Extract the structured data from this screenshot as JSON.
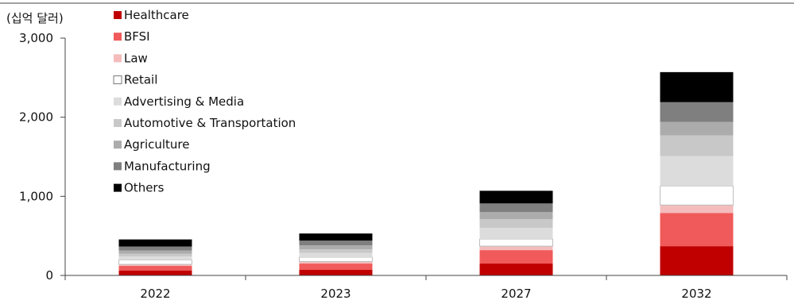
{
  "chart_data": {
    "type": "bar",
    "stacked": true,
    "unit_label": "(십억 달러)",
    "categories": [
      "2022",
      "2023",
      "2027",
      "2032"
    ],
    "ylim": [
      0,
      3000
    ],
    "yticks": [
      0,
      1000,
      2000,
      3000
    ],
    "ytick_labels": [
      "0",
      "1,000",
      "2,000",
      "3,000"
    ],
    "grid": false,
    "legend_position": "top-left",
    "series": [
      {
        "name": "Healthcare",
        "color": "#c00000",
        "values": [
          60,
          70,
          150,
          370
        ]
      },
      {
        "name": "BFSI",
        "color": "#f05a5a",
        "values": [
          60,
          80,
          170,
          420
        ]
      },
      {
        "name": "Law",
        "color": "#f4bcbc",
        "values": [
          20,
          25,
          50,
          100
        ]
      },
      {
        "name": "Retail",
        "color": "#ffffff",
        "values": [
          55,
          55,
          90,
          240
        ]
      },
      {
        "name": "Advertising & Media",
        "color": "#dcdcdc",
        "values": [
          45,
          55,
          140,
          380
        ]
      },
      {
        "name": "Automotive & Transportation",
        "color": "#c8c8c8",
        "values": [
          35,
          45,
          110,
          260
        ]
      },
      {
        "name": "Agriculture",
        "color": "#acacac",
        "values": [
          40,
          50,
          90,
          170
        ]
      },
      {
        "name": "Manufacturing",
        "color": "#7f7f7f",
        "values": [
          50,
          60,
          110,
          250
        ]
      },
      {
        "name": "Others",
        "color": "#000000",
        "values": [
          90,
          90,
          160,
          380
        ]
      }
    ]
  }
}
